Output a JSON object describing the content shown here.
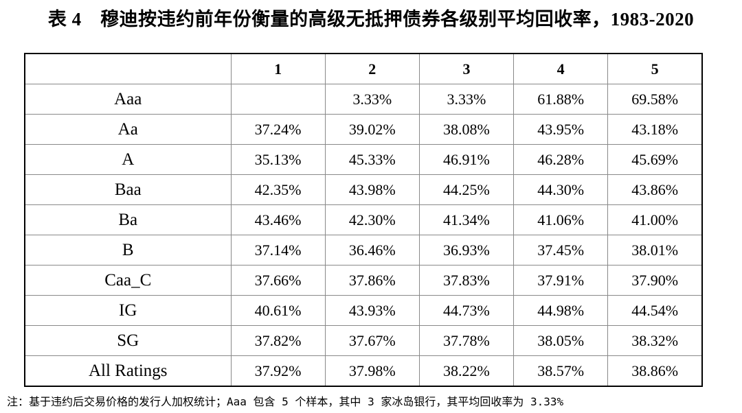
{
  "title": "表 4　穆迪按违约前年份衡量的高级无抵押债券各级别平均回收率，1983-2020",
  "table": {
    "columns": [
      "",
      "1",
      "2",
      "3",
      "4",
      "5"
    ],
    "rows": [
      {
        "rating": "Aaa",
        "values": [
          "",
          "3.33%",
          "3.33%",
          "61.88%",
          "69.58%"
        ]
      },
      {
        "rating": "Aa",
        "values": [
          "37.24%",
          "39.02%",
          "38.08%",
          "43.95%",
          "43.18%"
        ]
      },
      {
        "rating": "A",
        "values": [
          "35.13%",
          "45.33%",
          "46.91%",
          "46.28%",
          "45.69%"
        ]
      },
      {
        "rating": "Baa",
        "values": [
          "42.35%",
          "43.98%",
          "44.25%",
          "44.30%",
          "43.86%"
        ]
      },
      {
        "rating": "Ba",
        "values": [
          "43.46%",
          "42.30%",
          "41.34%",
          "41.06%",
          "41.00%"
        ]
      },
      {
        "rating": "B",
        "values": [
          "37.14%",
          "36.46%",
          "36.93%",
          "37.45%",
          "38.01%"
        ]
      },
      {
        "rating": "Caa_C",
        "values": [
          "37.66%",
          "37.86%",
          "37.83%",
          "37.91%",
          "37.90%"
        ]
      },
      {
        "rating": "IG",
        "values": [
          "40.61%",
          "43.93%",
          "44.73%",
          "44.98%",
          "44.54%"
        ]
      },
      {
        "rating": "SG",
        "values": [
          "37.82%",
          "37.67%",
          "37.78%",
          "38.05%",
          "38.32%"
        ]
      },
      {
        "rating": "All Ratings",
        "values": [
          "37.92%",
          "37.98%",
          "38.22%",
          "38.57%",
          "38.86%"
        ]
      }
    ]
  },
  "note": "注：基于违约后交易价格的发行人加权统计；Aaa 包含 5 个样本，其中 3 家冰岛银行，其平均回收率为 3.33%"
}
